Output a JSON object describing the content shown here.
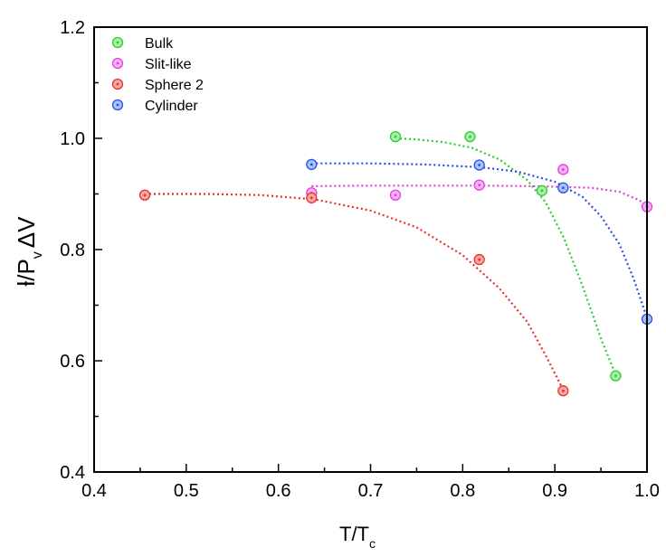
{
  "chart_data": {
    "type": "scatter",
    "xlabel": "T/T",
    "xlabel_sub": "c",
    "ylabel_main": "ƚ/P",
    "ylabel_sub": "v",
    "ylabel_end": "ΔV",
    "xlim": [
      0.4,
      1.0
    ],
    "ylim": [
      0.4,
      1.2
    ],
    "xticks": [
      "0.4",
      "0.5",
      "0.6",
      "0.7",
      "0.8",
      "0.9",
      "1.0"
    ],
    "yticks": [
      "0.4",
      "0.6",
      "0.8",
      "1.0",
      "1.2"
    ],
    "grid": false,
    "legend_position": "top-left",
    "series": [
      {
        "name": "Bulk",
        "color": "#2ecc2e",
        "marker_fill": "#a8f0a8",
        "x": [
          0.727,
          0.808,
          0.886,
          0.966
        ],
        "y": [
          1.003,
          1.003,
          0.906,
          0.573
        ],
        "fit_x": [
          0.727,
          0.75,
          0.78,
          0.81,
          0.84,
          0.87,
          0.89,
          0.91,
          0.93,
          0.95,
          0.966
        ],
        "fit_y": [
          1.0,
          0.998,
          0.993,
          0.983,
          0.962,
          0.925,
          0.885,
          0.82,
          0.735,
          0.64,
          0.575
        ]
      },
      {
        "name": "Slit-like",
        "color": "#e040e0",
        "marker_fill": "#f7b0f7",
        "x": [
          0.636,
          0.727,
          0.818,
          0.909,
          1.0
        ],
        "y": [
          0.902,
          0.898,
          0.916,
          0.944,
          0.877
        ],
        "fit_x": [
          0.636,
          0.7,
          0.76,
          0.82,
          0.88,
          0.94,
          0.97,
          0.99,
          1.0
        ],
        "fit_y": [
          0.914,
          0.915,
          0.915,
          0.915,
          0.914,
          0.911,
          0.904,
          0.89,
          0.88
        ]
      },
      {
        "name": "Sphere 2",
        "color": "#e83030",
        "marker_fill": "#f5a8a0",
        "x": [
          0.455,
          0.636,
          0.818,
          0.909
        ],
        "y": [
          0.898,
          0.893,
          0.782,
          0.546
        ],
        "fit_x": [
          0.455,
          0.52,
          0.58,
          0.64,
          0.7,
          0.75,
          0.8,
          0.84,
          0.87,
          0.89,
          0.909
        ],
        "fit_y": [
          0.9,
          0.9,
          0.898,
          0.89,
          0.87,
          0.84,
          0.79,
          0.73,
          0.67,
          0.61,
          0.548
        ]
      },
      {
        "name": "Cylinder",
        "color": "#2a4ee8",
        "marker_fill": "#a8c4f5",
        "x": [
          0.636,
          0.818,
          0.909,
          1.0
        ],
        "y": [
          0.953,
          0.952,
          0.911,
          0.675
        ],
        "fit_x": [
          0.636,
          0.7,
          0.76,
          0.82,
          0.86,
          0.9,
          0.93,
          0.95,
          0.97,
          0.985,
          1.0
        ],
        "fit_y": [
          0.955,
          0.955,
          0.953,
          0.948,
          0.94,
          0.922,
          0.895,
          0.86,
          0.81,
          0.75,
          0.677
        ]
      }
    ]
  }
}
